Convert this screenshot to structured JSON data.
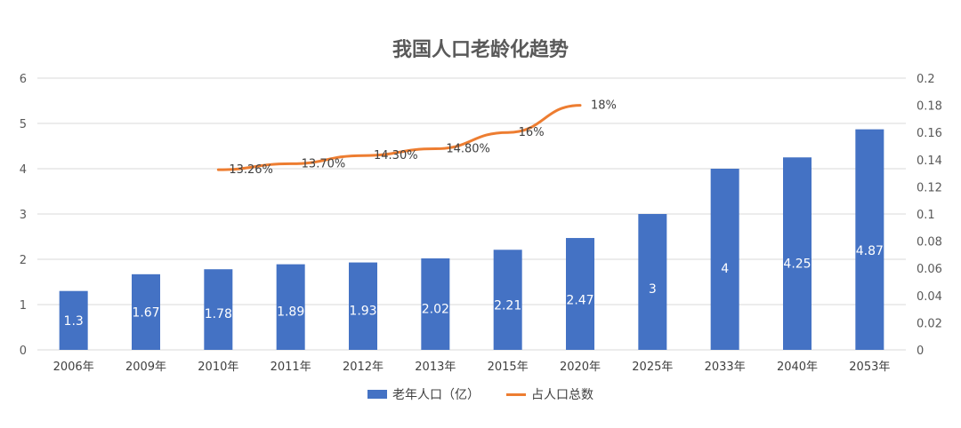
{
  "chart_data": {
    "type": "bar",
    "title": "我国人口老龄化趋势",
    "categories": [
      "2006年",
      "2009年",
      "2010年",
      "2011年",
      "2012年",
      "2013年",
      "2015年",
      "2020年",
      "2025年",
      "2033年",
      "2040年",
      "2053年"
    ],
    "series": [
      {
        "name": "老年人口（亿）",
        "type": "bar",
        "axis": "left",
        "values": [
          1.3,
          1.67,
          1.78,
          1.89,
          1.93,
          2.02,
          2.21,
          2.47,
          3,
          4,
          4.25,
          4.87
        ],
        "data_labels": [
          "1.3",
          "1.67",
          "1.78",
          "1.89",
          "1.93",
          "2.02",
          "2.21",
          "2.47",
          "3",
          "4",
          "4.25",
          "4.87"
        ]
      },
      {
        "name": "占人口总数",
        "type": "line",
        "axis": "right",
        "values": [
          null,
          null,
          0.1326,
          0.137,
          0.143,
          0.148,
          0.16,
          0.18,
          null,
          null,
          null,
          null
        ],
        "data_labels": [
          "",
          "",
          "13.26%",
          "13.70%",
          "14.30%",
          "14.80%",
          "16%",
          "18%",
          "",
          "",
          "",
          ""
        ]
      }
    ],
    "y_left": {
      "min": 0,
      "max": 6,
      "ticks": [
        "0",
        "1",
        "2",
        "3",
        "4",
        "5",
        "6"
      ]
    },
    "y_right": {
      "min": 0,
      "max": 0.2,
      "ticks": [
        "0",
        "0.02",
        "0.04",
        "0.06",
        "0.08",
        "0.1",
        "0.12",
        "0.14",
        "0.16",
        "0.18",
        "0.2"
      ]
    },
    "grid": true,
    "legend_position": "bottom",
    "colors": {
      "bar": "#4472C4",
      "line": "#ED7D31",
      "grid": "#D9D9D9",
      "axis_text": "#595959"
    }
  }
}
